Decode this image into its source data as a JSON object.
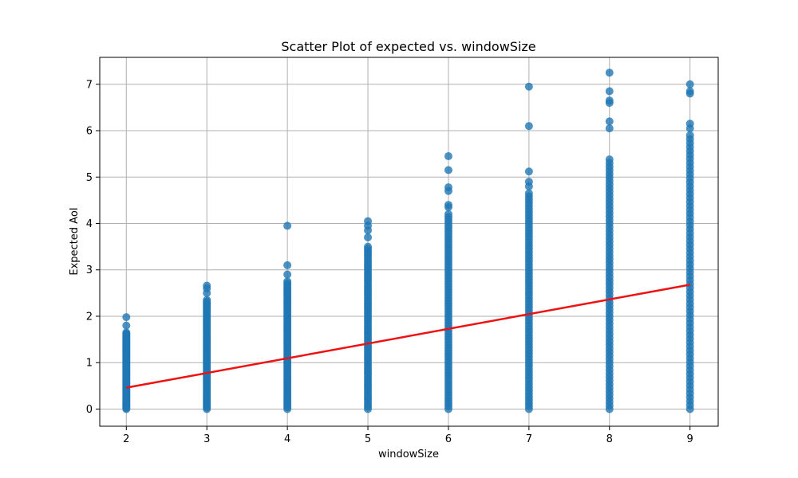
{
  "chart_data": {
    "type": "scatter",
    "title": "Scatter Plot of expected vs. windowSize",
    "xlabel": "windowSize",
    "ylabel": "Expected AoI",
    "xlim": [
      1.67,
      9.35
    ],
    "ylim": [
      -0.37,
      7.58
    ],
    "xticks": [
      2,
      3,
      4,
      5,
      6,
      7,
      8,
      9
    ],
    "yticks": [
      0,
      1,
      2,
      3,
      4,
      5,
      6,
      7
    ],
    "grid": true,
    "point_color": "#1f77b4",
    "regression_color": "#ee1111",
    "regression_line": {
      "x": [
        2,
        9
      ],
      "y": [
        0.46,
        2.68
      ]
    },
    "series": [
      {
        "columns": [
          {
            "x": 2,
            "min": 0.0,
            "max": 1.65,
            "outliers": [
              1.8,
              1.98
            ]
          },
          {
            "x": 3,
            "min": 0.0,
            "max": 2.35,
            "outliers": [
              2.5,
              2.6,
              2.66
            ]
          },
          {
            "x": 4,
            "min": 0.0,
            "max": 2.75,
            "outliers": [
              2.9,
              3.1,
              3.95
            ]
          },
          {
            "x": 5,
            "min": 0.0,
            "max": 3.5,
            "outliers": [
              3.7,
              3.85,
              3.95,
              4.05
            ]
          },
          {
            "x": 6,
            "min": 0.0,
            "max": 4.2,
            "outliers": [
              4.35,
              4.4,
              4.7,
              4.78,
              5.15,
              5.45
            ]
          },
          {
            "x": 7,
            "min": 0.0,
            "max": 4.65,
            "outliers": [
              4.8,
              4.9,
              5.12,
              6.1,
              6.95
            ]
          },
          {
            "x": 8,
            "min": 0.0,
            "max": 5.38,
            "outliers": [
              6.05,
              6.2,
              6.6,
              6.65,
              6.85,
              7.25
            ]
          },
          {
            "x": 9,
            "min": 0.0,
            "max": 5.9,
            "outliers": [
              6.05,
              6.15,
              6.8,
              6.85,
              7.0
            ]
          }
        ]
      }
    ]
  }
}
